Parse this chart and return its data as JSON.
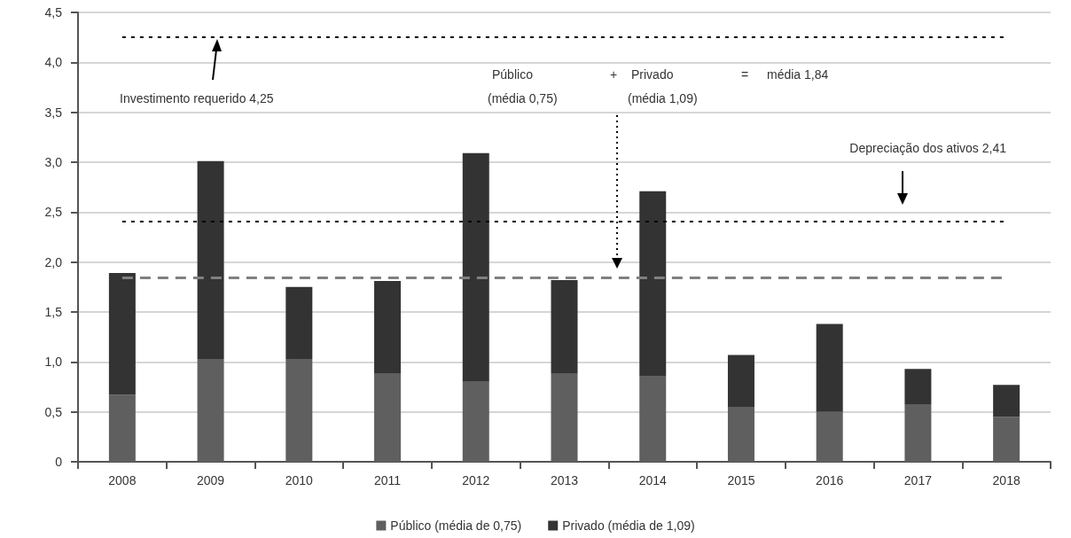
{
  "chart_data": {
    "type": "bar",
    "stacked": true,
    "categories": [
      "2008",
      "2009",
      "2010",
      "2011",
      "2012",
      "2013",
      "2014",
      "2015",
      "2016",
      "2017",
      "2018"
    ],
    "series": [
      {
        "name": "Público (média de 0,75)",
        "color": "#5f5f5f",
        "values": [
          0.67,
          1.03,
          1.03,
          0.88,
          0.8,
          0.88,
          0.86,
          0.55,
          0.5,
          0.57,
          0.45
        ]
      },
      {
        "name": "Privado (média de 1,09)",
        "color": "#333333",
        "values": [
          1.22,
          1.98,
          0.72,
          0.93,
          2.29,
          0.94,
          1.85,
          0.52,
          0.88,
          0.36,
          0.32
        ]
      }
    ],
    "ylim": [
      0,
      4.5
    ],
    "yticks": [
      {
        "value": 0,
        "label": "0"
      },
      {
        "value": 0.5,
        "label": "0,5"
      },
      {
        "value": 1,
        "label": "1,0"
      },
      {
        "value": 1.5,
        "label": "1,5"
      },
      {
        "value": 2,
        "label": "2,0"
      },
      {
        "value": 2.5,
        "label": "2,5"
      },
      {
        "value": 3,
        "label": "3,0"
      },
      {
        "value": 3.5,
        "label": "3,5"
      },
      {
        "value": 4,
        "label": "4,0"
      },
      {
        "value": 4.5,
        "label": "4,5"
      }
    ],
    "grid": "y",
    "legend": "bottom",
    "ref_lines": [
      {
        "axis": "y",
        "value": 4.25,
        "color": "#000000",
        "line_style": "dotted"
      },
      {
        "axis": "y",
        "value": 2.41,
        "color": "#000000",
        "line_style": "dotted"
      },
      {
        "axis": "y",
        "value": 1.84,
        "color": "#808080",
        "line_style": "dashed"
      }
    ],
    "annotations": [
      "Investimento requerido 4,25",
      "Depreciação dos ativos 2,41",
      "Público",
      "(média 0,75)",
      "+",
      "Privado",
      "(média 1,09)",
      "=",
      "média 1,84"
    ]
  }
}
